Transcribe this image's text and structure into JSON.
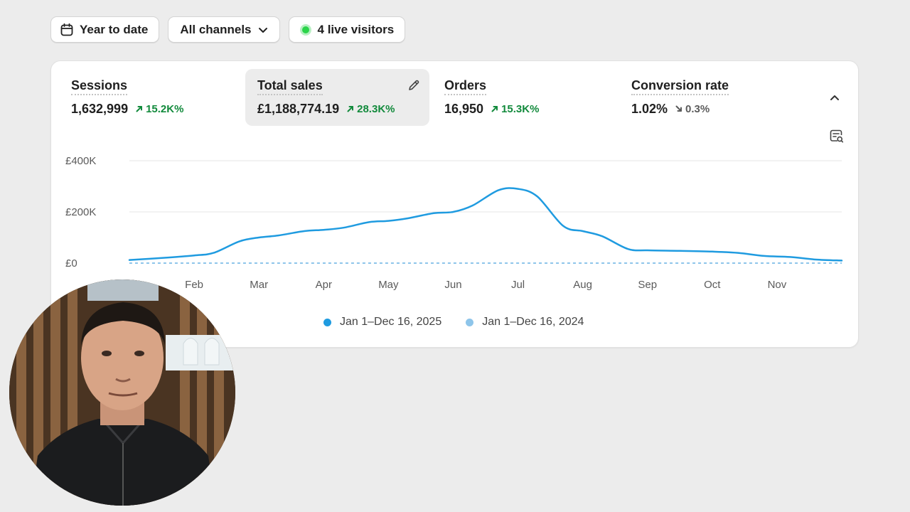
{
  "toolbar": {
    "date_range": "Year to date",
    "channels": "All channels",
    "live_visitors": "4 live visitors"
  },
  "metrics": [
    {
      "label": "Sessions",
      "value": "1,632,999",
      "delta": "15.2K%",
      "trend": "up"
    },
    {
      "label": "Total sales",
      "value": "£1,188,774.19",
      "delta": "28.3K%",
      "trend": "up"
    },
    {
      "label": "Orders",
      "value": "16,950",
      "delta": "15.3K%",
      "trend": "up"
    },
    {
      "label": "Conversion rate",
      "value": "1.02%",
      "delta": "0.3%",
      "trend": "down"
    }
  ],
  "legend": {
    "current": "Jan 1–Dec 16, 2025",
    "previous": "Jan 1–Dec 16, 2024"
  },
  "colors": {
    "current": "#1f9be0",
    "previous": "#8ec5ea",
    "up": "#128a3c",
    "live": "#2bd44a"
  },
  "chart_data": {
    "type": "line",
    "y_ticks": [
      "£0",
      "£200K",
      "£400K"
    ],
    "ylim": [
      0,
      400000
    ],
    "x_tick_labels": [
      "Feb",
      "Mar",
      "Apr",
      "May",
      "Jun",
      "Jul",
      "Aug",
      "Sep",
      "Oct",
      "Nov"
    ],
    "x_tick_positions": [
      1,
      2,
      3,
      4,
      5,
      6,
      7,
      8,
      9,
      10
    ],
    "xlim": [
      0,
      11
    ],
    "grid": true,
    "legend_position": "bottom",
    "series": [
      {
        "name": "Jan 1–Dec 16, 2025",
        "x": [
          0,
          0.5,
          1,
          1.3,
          1.7,
          2,
          2.3,
          2.7,
          3,
          3.3,
          3.7,
          4,
          4.3,
          4.7,
          5,
          5.3,
          5.7,
          6,
          6.3,
          6.7,
          7,
          7.3,
          7.7,
          8,
          8.5,
          9,
          9.4,
          9.8,
          10.2,
          10.6,
          11
        ],
        "y": [
          12000,
          20000,
          30000,
          40000,
          85000,
          100000,
          108000,
          125000,
          130000,
          138000,
          160000,
          165000,
          175000,
          195000,
          200000,
          225000,
          285000,
          290000,
          260000,
          145000,
          125000,
          105000,
          55000,
          50000,
          48000,
          45000,
          40000,
          28000,
          24000,
          14000,
          10000
        ]
      },
      {
        "name": "Jan 1–Dec 16, 2024",
        "x": [
          0,
          11
        ],
        "y": [
          0,
          0
        ]
      }
    ]
  }
}
